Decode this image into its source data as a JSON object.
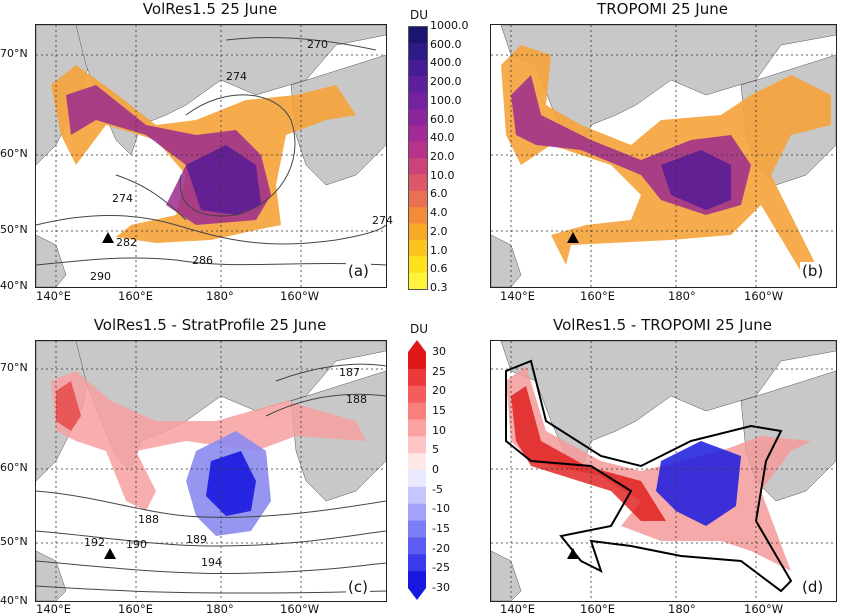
{
  "panels": {
    "a": {
      "title": "VolRes1.5 25 June",
      "tag": "(a)",
      "lat_labels": [
        "70°N",
        "60°N",
        "50°N",
        "40°N"
      ],
      "lon_labels": [
        "140°E",
        "160°E",
        "180°",
        "160°W"
      ],
      "contours": [
        "270",
        "274",
        "274",
        "282",
        "290",
        "286",
        "274"
      ]
    },
    "b": {
      "title": "TROPOMI 25 June",
      "tag": "(b)",
      "lon_labels": [
        "140°E",
        "160°E",
        "180°",
        "160°W"
      ]
    },
    "c": {
      "title": "VolRes1.5 - StratProfile 25 June",
      "tag": "(c)",
      "lat_labels": [
        "70°N",
        "60°N",
        "50°N",
        "40°N"
      ],
      "lon_labels": [
        "140°E",
        "160°E",
        "180°",
        "160°W"
      ],
      "contours": [
        "187",
        "188",
        "188",
        "189",
        "190",
        "192",
        "194"
      ]
    },
    "d": {
      "title": "VolRes1.5 - TROPOMI 25 June",
      "tag": "(d)",
      "lon_labels": [
        "140°E",
        "160°E",
        "180°",
        "160°W"
      ]
    }
  },
  "colorbar_top": {
    "unit": "DU",
    "ticks": [
      "1000.0",
      "600.0",
      "400.0",
      "200.0",
      "100.0",
      "60.0",
      "40.0",
      "20.0",
      "10.0",
      "6.0",
      "4.0",
      "2.0",
      "1.0",
      "0.6",
      "0.3"
    ],
    "colors": [
      "#1a1670",
      "#2e1a86",
      "#461c96",
      "#5e1f9d",
      "#74229f",
      "#8c259d",
      "#a22a97",
      "#b8338b",
      "#cc437b",
      "#dc5868",
      "#e97151",
      "#f28c3a",
      "#f8a827",
      "#fcc41c",
      "#fee21a",
      "#fff33b"
    ]
  },
  "colorbar_bottom": {
    "unit": "DU",
    "ticks": [
      "30",
      "25",
      "20",
      "15",
      "10",
      "5",
      "0",
      "-5",
      "-10",
      "-15",
      "-20",
      "-25",
      "-30"
    ],
    "colors": [
      "#e01818",
      "#ec3a3a",
      "#f55c5c",
      "#f97e7e",
      "#fba3a3",
      "#fdc6c6",
      "#ffe8e8",
      "#e8e8ff",
      "#c6c6fd",
      "#a3a3fb",
      "#7e7ef9",
      "#5c5cf5",
      "#3a3aec",
      "#1818e0"
    ]
  },
  "map_colors": {
    "ocean": "#ffffff",
    "land": "#c8c8c8",
    "contour": "#444444",
    "grid": "#333333"
  }
}
